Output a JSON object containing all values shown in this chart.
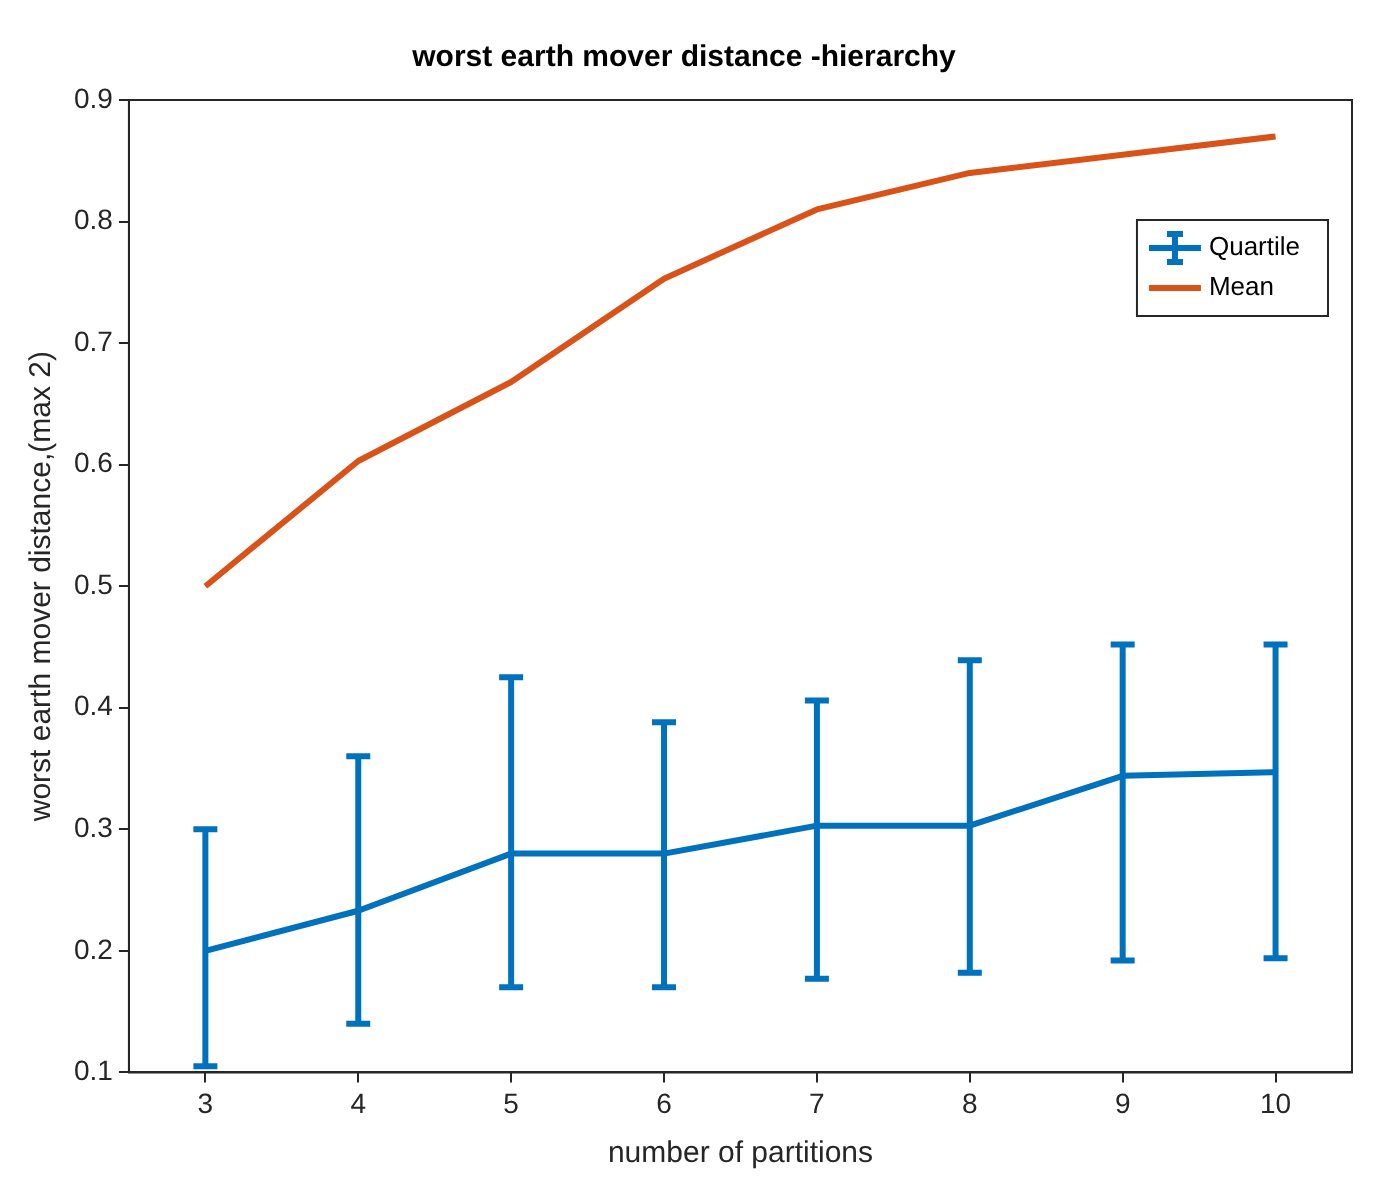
{
  "chart_data": {
    "type": "line",
    "title": "worst earth mover distance -hierarchy",
    "xlabel": "number of partitions",
    "ylabel": "worst earth mover distance,(max 2)",
    "x": [
      3,
      4,
      5,
      6,
      7,
      8,
      9,
      10
    ],
    "series": [
      {
        "name": "Quartile",
        "color": "#0072bd",
        "values": [
          0.2,
          0.233,
          0.28,
          0.28,
          0.303,
          0.303,
          0.344,
          0.347
        ],
        "errors": [
          [
            0.105,
            0.3
          ],
          [
            0.14,
            0.36
          ],
          [
            0.17,
            0.425
          ],
          [
            0.17,
            0.388
          ],
          [
            0.177,
            0.406
          ],
          [
            0.182,
            0.439
          ],
          [
            0.192,
            0.452
          ],
          [
            0.194,
            0.452
          ]
        ]
      },
      {
        "name": "Mean",
        "color": "#d95319",
        "values": [
          0.5,
          0.603,
          0.668,
          0.753,
          0.81,
          0.84,
          0.855,
          0.87
        ]
      }
    ],
    "xlim": [
      2.5,
      10.5
    ],
    "xticks": [
      3,
      4,
      5,
      6,
      7,
      8,
      9,
      10
    ],
    "ylim": [
      0.1,
      0.9
    ],
    "yticks": [
      0.1,
      0.2,
      0.3,
      0.4,
      0.5,
      0.6,
      0.7,
      0.8,
      0.9
    ],
    "grid": false,
    "legend": "top right",
    "marker": "none",
    "line_style": "solid"
  }
}
